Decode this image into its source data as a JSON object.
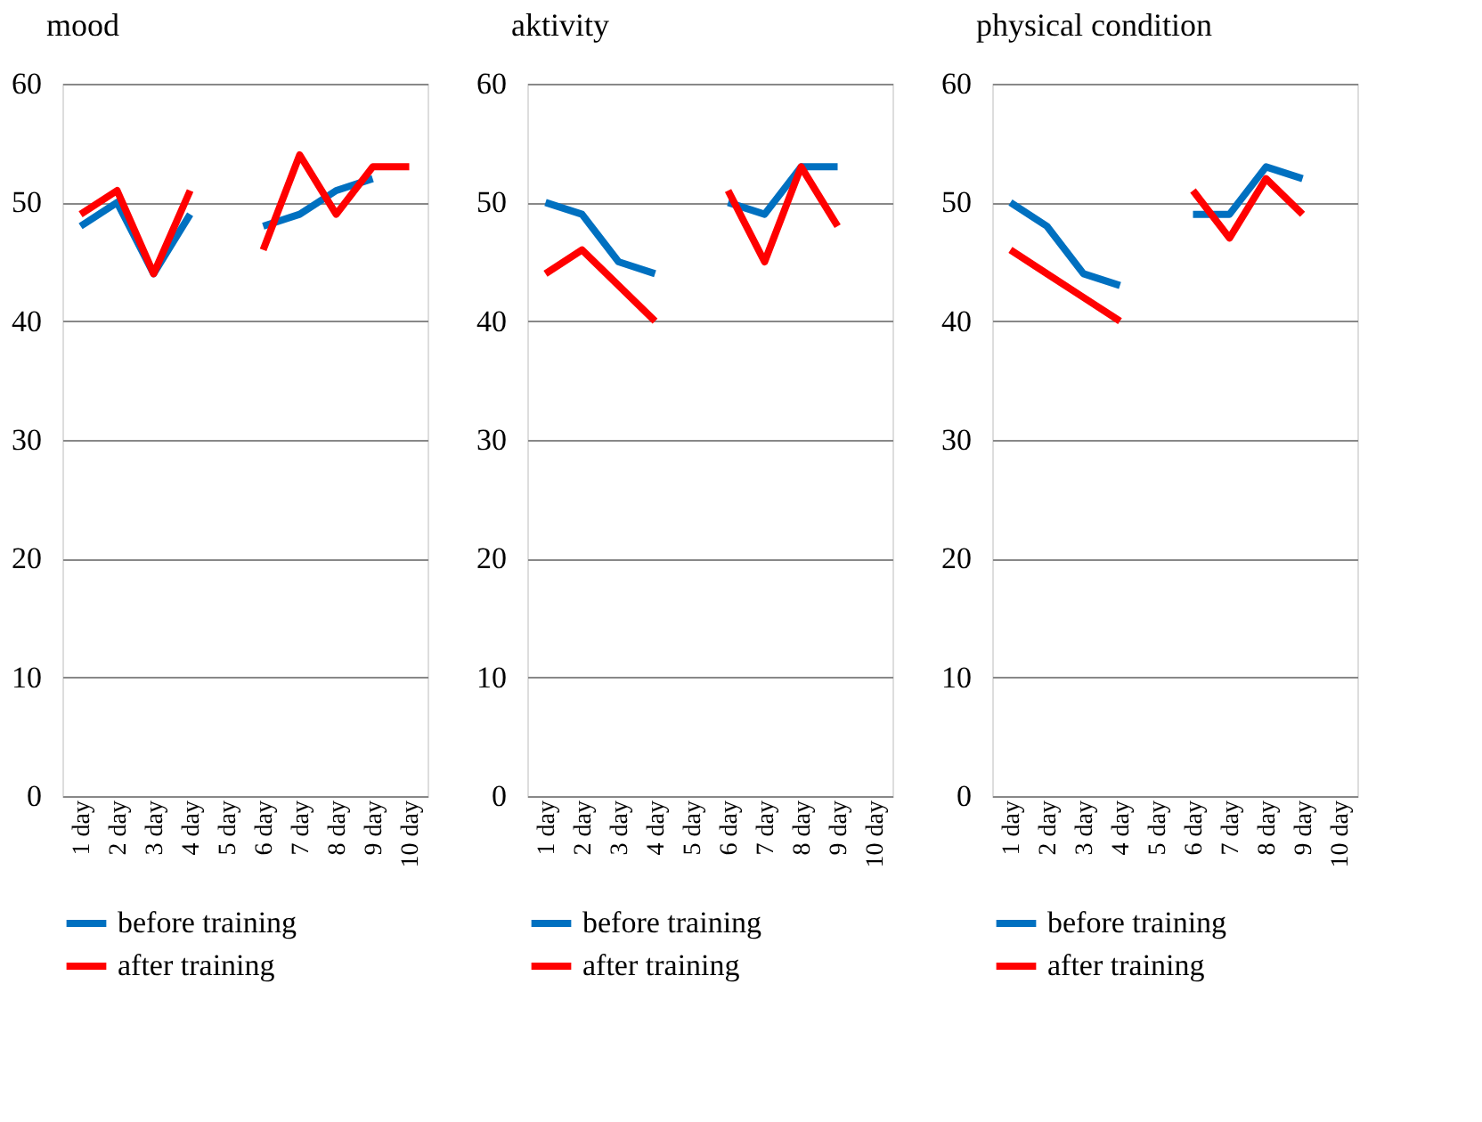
{
  "chart_data": [
    {
      "type": "line",
      "title": "mood",
      "categories": [
        "1 day",
        "2 day",
        "3 day",
        "4 day",
        "5 day",
        "6 day",
        "7 day",
        "8 day",
        "9 day",
        "10 day"
      ],
      "ylim": [
        0,
        60
      ],
      "yticks": [
        0,
        10,
        20,
        30,
        40,
        50,
        60
      ],
      "grid": "y",
      "legend": "bottom",
      "series": [
        {
          "name": "before training",
          "color": "#0070c0",
          "values": [
            48,
            50,
            44,
            49,
            null,
            48,
            49,
            51,
            52,
            null
          ]
        },
        {
          "name": "after training",
          "color": "#ff0000",
          "values": [
            49,
            51,
            44,
            51,
            null,
            46,
            54,
            49,
            53,
            53
          ]
        }
      ]
    },
    {
      "type": "line",
      "title": "aktivity",
      "categories": [
        "1 day",
        "2 day",
        "3 day",
        "4 day",
        "5 day",
        "6 day",
        "7 day",
        "8 day",
        "9 day",
        "10 day"
      ],
      "ylim": [
        0,
        60
      ],
      "yticks": [
        0,
        10,
        20,
        30,
        40,
        50,
        60
      ],
      "grid": "y",
      "legend": "bottom",
      "series": [
        {
          "name": "before training",
          "color": "#0070c0",
          "values": [
            50,
            49,
            45,
            44,
            null,
            50,
            49,
            53,
            53,
            null
          ]
        },
        {
          "name": "after training",
          "color": "#ff0000",
          "values": [
            44,
            46,
            43,
            40,
            null,
            51,
            45,
            53,
            48,
            null
          ]
        }
      ]
    },
    {
      "type": "line",
      "title": "physical condition",
      "categories": [
        "1 day",
        "2 day",
        "3 day",
        "4 day",
        "5 day",
        "6 day",
        "7 day",
        "8 day",
        "9 day",
        "10 day"
      ],
      "ylim": [
        0,
        60
      ],
      "yticks": [
        0,
        10,
        20,
        30,
        40,
        50,
        60
      ],
      "grid": "y",
      "legend": "bottom",
      "series": [
        {
          "name": "before training",
          "color": "#0070c0",
          "values": [
            50,
            48,
            44,
            43,
            null,
            49,
            49,
            53,
            52,
            null
          ]
        },
        {
          "name": "after training",
          "color": "#ff0000",
          "values": [
            46,
            44,
            42,
            40,
            null,
            51,
            47,
            52,
            49,
            null
          ]
        }
      ]
    }
  ]
}
